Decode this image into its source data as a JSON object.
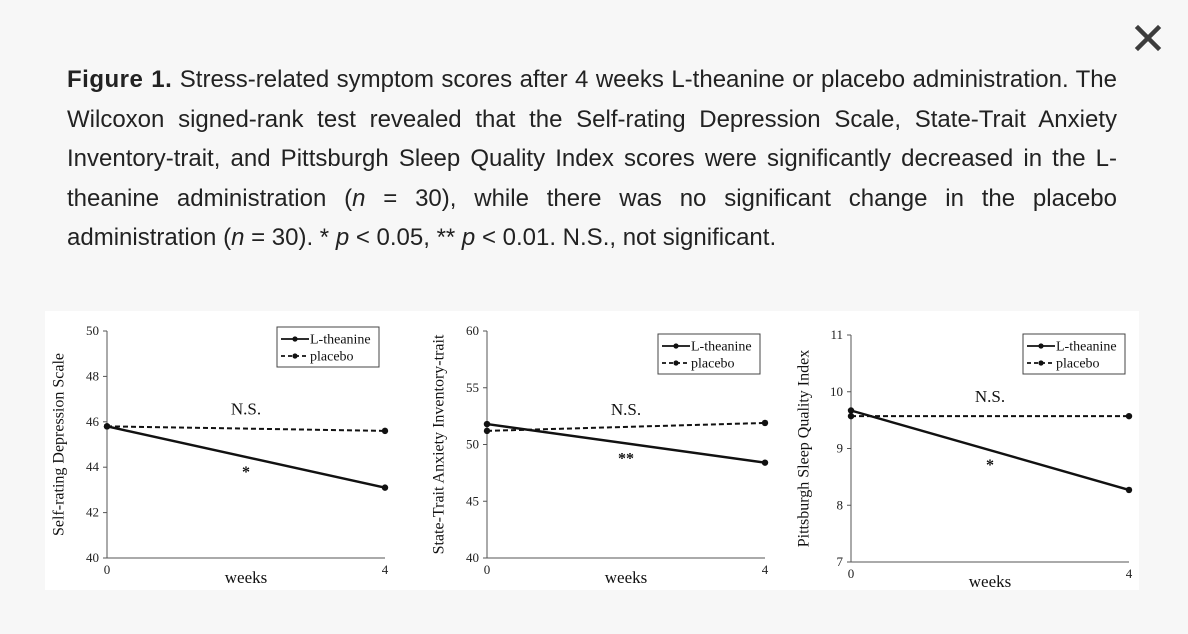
{
  "viewer": {
    "close_label": "Close"
  },
  "caption": {
    "label": "Figure 1.",
    "text_before_n1": " Stress-related symptom scores after 4 weeks L-theanine or placebo administration. The Wilcoxon signed-rank test revealed that the Self-rating Depression Scale, State-Trait Anxiety Inventory-trait, and Pittsburgh Sleep Quality Index scores were significantly decreased in the L-theanine administration (",
    "n1_symbol": "n",
    "text_after_n1": " = 30), while there was no significant change in the placebo administration (",
    "n2_symbol": "n",
    "text_after_n2": " = 30). * ",
    "p1_symbol": "p",
    "text_after_p1": " < 0.05, ** ",
    "p2_symbol": "p",
    "text_after_p2": " < 0.01. N.S., not significant."
  },
  "chart_data": [
    {
      "type": "line",
      "title": "",
      "xlabel": "weeks",
      "ylabel": "Self-rating Depression Scale",
      "x": [
        0,
        4
      ],
      "x_ticks": [
        "0",
        "4"
      ],
      "y_ticks": [
        "40",
        "42",
        "44",
        "46",
        "48",
        "50"
      ],
      "ylim": [
        40,
        50
      ],
      "legend_position": "top-right",
      "series": [
        {
          "name": "L-theanine",
          "values": [
            45.8,
            43.1
          ],
          "style": "solid",
          "annotation": "*"
        },
        {
          "name": "placebo",
          "values": [
            45.8,
            45.6
          ],
          "style": "dashed",
          "annotation": "N.S."
        }
      ],
      "grid": false
    },
    {
      "type": "line",
      "title": "",
      "xlabel": "weeks",
      "ylabel": "State-Trait Anxiety Inventory-trait",
      "x": [
        0,
        4
      ],
      "x_ticks": [
        "0",
        "4"
      ],
      "y_ticks": [
        "40",
        "45",
        "50",
        "55",
        "60"
      ],
      "ylim": [
        40,
        60
      ],
      "legend_position": "top-right",
      "series": [
        {
          "name": "L-theanine",
          "values": [
            51.8,
            48.4
          ],
          "style": "solid",
          "annotation": "**"
        },
        {
          "name": "placebo",
          "values": [
            51.2,
            51.9
          ],
          "style": "dashed",
          "annotation": "N.S."
        }
      ],
      "grid": false
    },
    {
      "type": "line",
      "title": "",
      "xlabel": "weeks",
      "ylabel": "Pittsburgh Sleep Quality Index",
      "x": [
        0,
        4
      ],
      "x_ticks": [
        "0",
        "4"
      ],
      "y_ticks": [
        "7",
        "8",
        "9",
        "10",
        "11"
      ],
      "ylim": [
        7,
        11
      ],
      "legend_position": "top-right",
      "series": [
        {
          "name": "L-theanine",
          "values": [
            9.67,
            8.27
          ],
          "style": "solid",
          "annotation": "*"
        },
        {
          "name": "placebo",
          "values": [
            9.57,
            9.57
          ],
          "style": "dashed",
          "annotation": "N.S."
        }
      ],
      "grid": false
    }
  ]
}
